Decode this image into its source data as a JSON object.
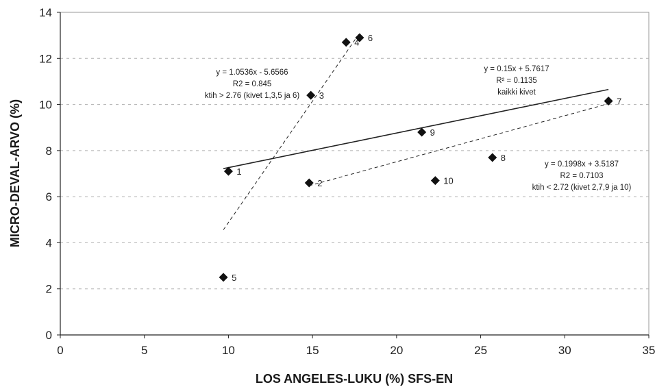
{
  "chart_data": {
    "type": "scatter",
    "xlabel": "LOS ANGELES-LUKU (%) SFS-EN",
    "ylabel": "MICRO-DEVAL-ARVO (%)",
    "xlim": [
      0,
      35
    ],
    "ylim": [
      0,
      14
    ],
    "xticks": [
      0,
      5,
      10,
      15,
      20,
      25,
      30,
      35
    ],
    "yticks": [
      0,
      2,
      4,
      6,
      8,
      10,
      12,
      14
    ],
    "grid": "horizontal dashed",
    "points": [
      {
        "label": "1",
        "x": 10.0,
        "y": 7.1
      },
      {
        "label": "2",
        "x": 14.8,
        "y": 6.6
      },
      {
        "label": "3",
        "x": 14.9,
        "y": 10.4
      },
      {
        "label": "4",
        "x": 17.0,
        "y": 12.7
      },
      {
        "label": "5",
        "x": 9.7,
        "y": 2.5
      },
      {
        "label": "6",
        "x": 17.8,
        "y": 12.9
      },
      {
        "label": "7",
        "x": 32.6,
        "y": 10.15
      },
      {
        "label": "8",
        "x": 25.7,
        "y": 7.7
      },
      {
        "label": "9",
        "x": 21.5,
        "y": 8.8
      },
      {
        "label": "10",
        "x": 22.3,
        "y": 6.7
      }
    ],
    "trendlines": [
      {
        "slope": 1.0536,
        "intercept": -5.6566,
        "x_range": [
          9.7,
          17.8
        ],
        "style": "dashed"
      },
      {
        "slope": 0.15,
        "intercept": 5.7617,
        "x_range": [
          9.7,
          32.6
        ],
        "style": "solid"
      },
      {
        "slope": 0.1998,
        "intercept": 3.5187,
        "x_range": [
          14.8,
          32.6
        ],
        "style": "dashed"
      }
    ],
    "annotations": [
      {
        "lines": [
          "y = 1.0536x - 5.6566",
          "R2 = 0.845",
          "ktih > 2.76 (kivet 1,3,5 ja 6)"
        ]
      },
      {
        "lines": [
          "y = 0.15x + 5.7617",
          "R² = 0.1135",
          "kaikki kivet"
        ]
      },
      {
        "lines": [
          "y = 0.1998x + 3.5187",
          "R2 = 0.7103",
          "ktih < 2.72 (kivet 2,7,9 ja 10)"
        ]
      }
    ]
  }
}
